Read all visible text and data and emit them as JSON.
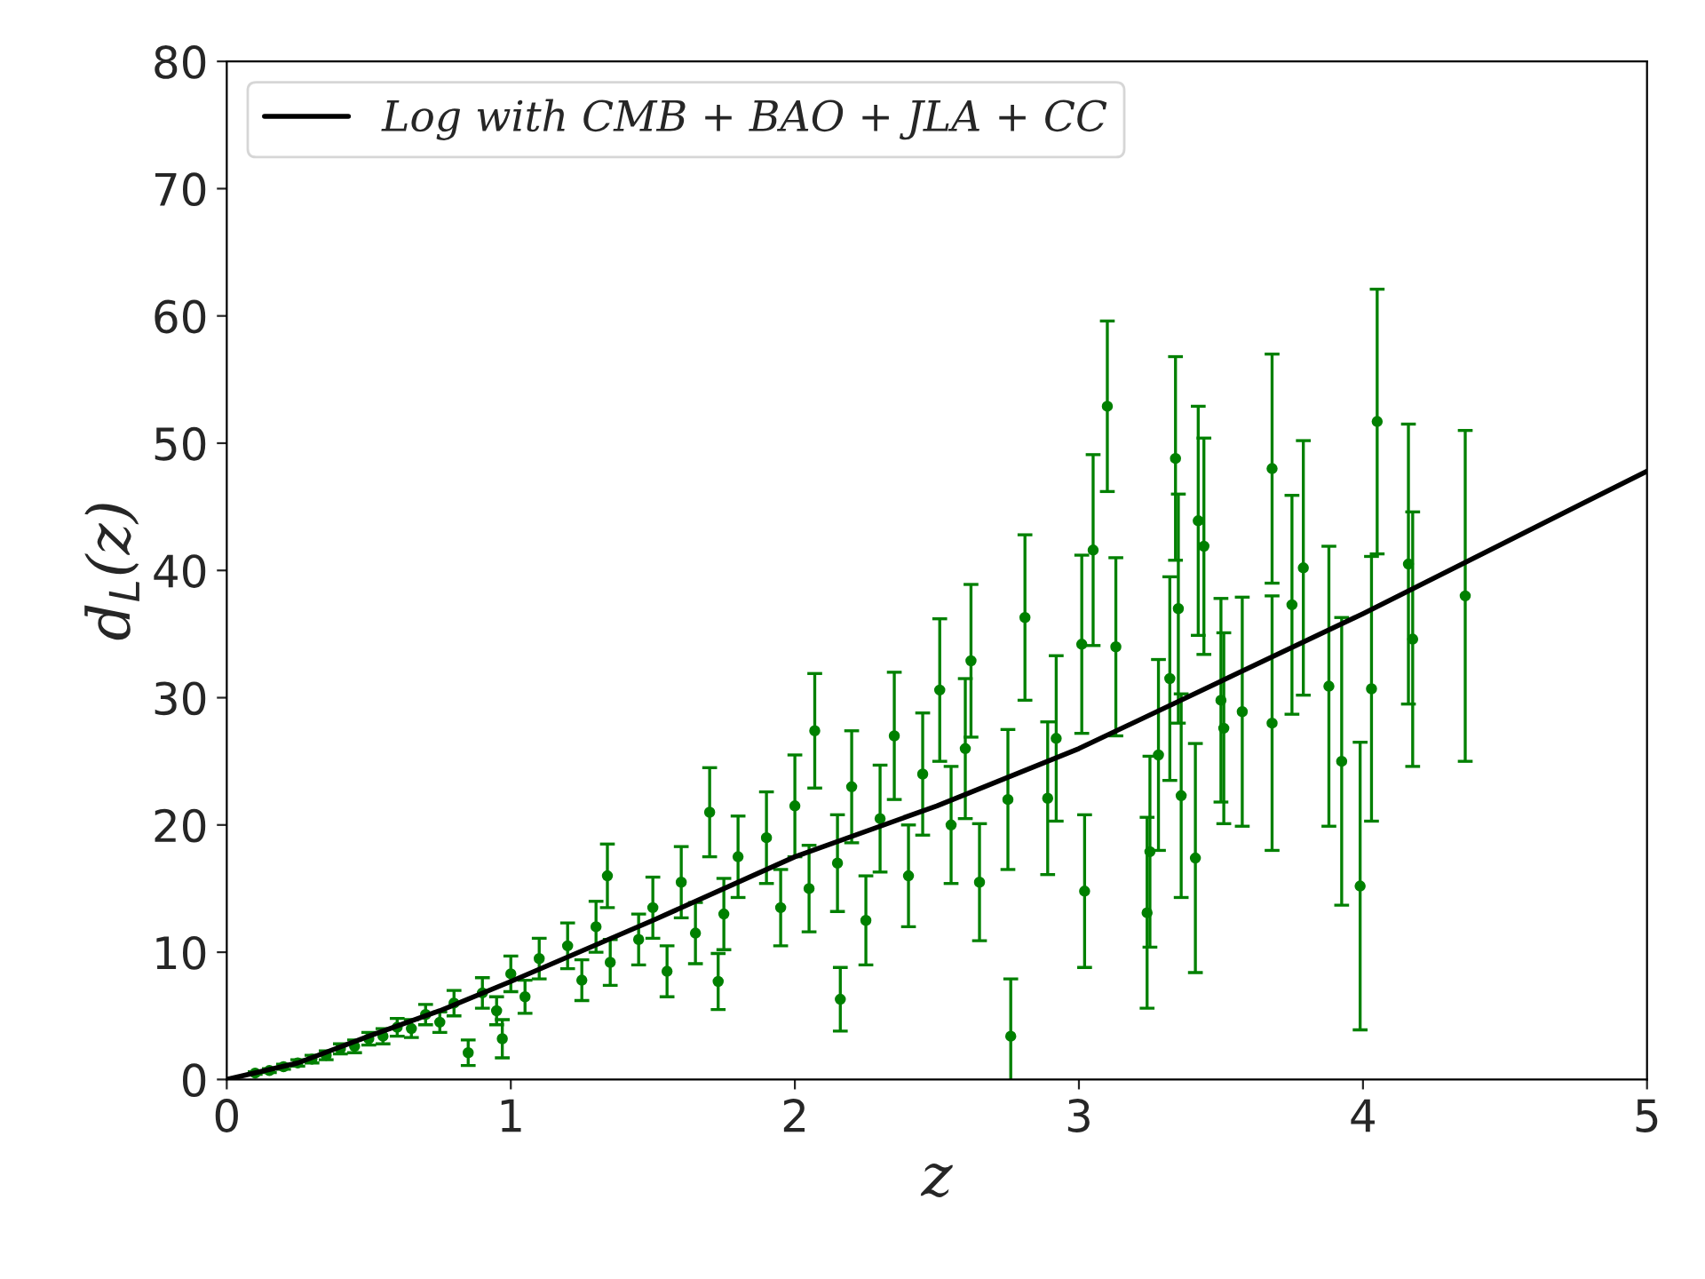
{
  "chart_data": {
    "type": "scatter",
    "xlabel": "z",
    "ylabel": "d$_{L}$(z)",
    "xlim": [
      0,
      5
    ],
    "ylim": [
      0,
      80
    ],
    "xticks": [
      0,
      1,
      2,
      3,
      4,
      5
    ],
    "yticks": [
      0,
      10,
      20,
      30,
      40,
      50,
      60,
      70,
      80
    ],
    "grid": false,
    "legend": "top left",
    "series": [
      {
        "color": "#008000",
        "marker": "circle",
        "x": [
          0.1,
          0.15,
          0.2,
          0.25,
          0.3,
          0.35,
          0.4,
          0.45,
          0.5,
          0.55,
          0.6,
          0.65,
          0.7,
          0.75,
          0.8,
          0.85,
          0.9,
          0.95,
          0.97,
          1.0,
          1.05,
          1.1,
          1.2,
          1.25,
          1.3,
          1.34,
          1.35,
          1.45,
          1.5,
          1.55,
          1.6,
          1.65,
          1.7,
          1.73,
          1.75,
          1.8,
          1.9,
          1.95,
          2.0,
          2.05,
          2.07,
          2.15,
          2.16,
          2.2,
          2.25,
          2.3,
          2.35,
          2.4,
          2.45,
          2.51,
          2.55,
          2.6,
          2.62,
          2.65,
          2.75,
          2.76,
          2.81,
          2.89,
          2.92,
          3.01,
          3.02,
          3.05,
          3.1,
          3.13,
          3.24,
          3.25,
          3.28,
          3.32,
          3.34,
          3.35,
          3.36,
          3.41,
          3.42,
          3.44,
          3.5,
          3.51,
          3.575,
          3.68,
          3.68,
          3.75,
          3.79,
          3.88,
          3.925,
          3.99,
          4.03,
          4.05,
          4.16,
          4.175,
          4.36
        ],
        "values": [
          0.5,
          0.7,
          1.0,
          1.3,
          1.6,
          1.9,
          2.4,
          2.6,
          3.2,
          3.4,
          4.1,
          4.0,
          5.1,
          4.5,
          6.0,
          2.1,
          6.8,
          5.4,
          3.2,
          8.3,
          6.5,
          9.5,
          10.5,
          7.8,
          12.0,
          16.0,
          9.2,
          11.0,
          13.5,
          8.5,
          15.5,
          11.5,
          21.0,
          7.7,
          13.0,
          17.5,
          19.0,
          13.5,
          21.5,
          15.0,
          27.4,
          17.0,
          6.3,
          23.0,
          12.5,
          20.5,
          27.0,
          16.0,
          24.0,
          30.6,
          20.0,
          26.0,
          32.9,
          15.5,
          22.0,
          3.4,
          36.3,
          22.1,
          26.8,
          34.2,
          14.8,
          41.6,
          52.9,
          34.0,
          13.1,
          17.9,
          25.5,
          31.5,
          48.8,
          37.0,
          22.3,
          17.4,
          43.9,
          41.9,
          29.8,
          27.6,
          28.9,
          48.0,
          28.0,
          37.3,
          40.2,
          30.9,
          25.0,
          15.2,
          30.7,
          51.7,
          40.5,
          34.6,
          38.0
        ],
        "errors": [
          0.1,
          0.15,
          0.2,
          0.25,
          0.3,
          0.35,
          0.4,
          0.5,
          0.5,
          0.6,
          0.7,
          0.7,
          0.8,
          0.8,
          1.0,
          1.0,
          1.2,
          1.1,
          1.5,
          1.4,
          1.3,
          1.6,
          1.8,
          1.6,
          2.0,
          2.5,
          1.8,
          2.0,
          2.4,
          2.0,
          2.8,
          2.4,
          3.5,
          2.2,
          2.8,
          3.2,
          3.6,
          3.0,
          4.0,
          3.4,
          4.5,
          3.8,
          2.5,
          4.4,
          3.5,
          4.2,
          5.0,
          4.0,
          4.8,
          5.6,
          4.6,
          5.5,
          6.0,
          4.6,
          5.5,
          4.5,
          6.5,
          6.0,
          6.5,
          7.0,
          6.0,
          7.5,
          6.7,
          7.0,
          7.5,
          7.5,
          7.5,
          8.0,
          8.0,
          9.0,
          8.0,
          9.0,
          9.0,
          8.5,
          8.0,
          7.5,
          9.0,
          9.0,
          10.0,
          8.6,
          10.0,
          11.0,
          11.3,
          11.3,
          10.4,
          10.4,
          11.0,
          10.0,
          13.0
        ]
      },
      {
        "type": "line",
        "name": "Log with CMB + BAO + JLA + CC",
        "color": "#000000",
        "marker": "none",
        "line_style": "solid",
        "x": [
          0,
          0.25,
          0.5,
          0.75,
          1,
          1.5,
          2,
          2.5,
          3,
          3.5,
          4,
          4.5,
          5
        ],
        "values": [
          0,
          1.3,
          3.4,
          5.4,
          7.7,
          12.5,
          17.5,
          21.5,
          26.0,
          31.3,
          36.6,
          42.2,
          47.8
        ]
      }
    ]
  }
}
